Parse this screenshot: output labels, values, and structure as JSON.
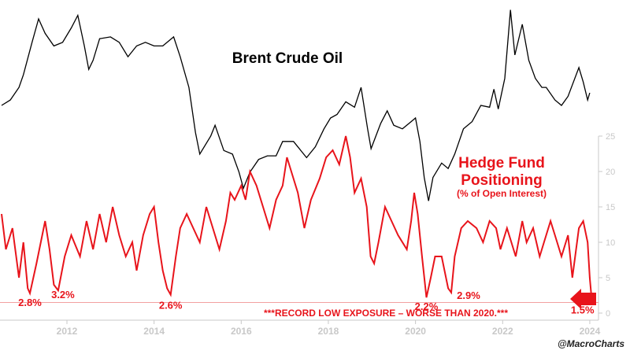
{
  "chart_data": {
    "type": "line",
    "brent_label": "Brent Crude Oil",
    "hf_label_line1": "Hedge Fund",
    "hf_label_line2": "Positioning",
    "hf_label_line3": "(% of Open Interest)",
    "x_ticks": [
      "2012",
      "2014",
      "2016",
      "2018",
      "2020",
      "2022",
      "2024"
    ],
    "xlim": [
      2010.5,
      2024.2
    ],
    "y_ticks": [
      "0",
      "5",
      "10",
      "15",
      "20",
      "25"
    ],
    "ylim": [
      0,
      25
    ],
    "grid": false,
    "colors": {
      "brent": "#000000",
      "hedge": "#e8141b",
      "axis": "#c8c8c8",
      "tick": "#c8c8c8",
      "record_line": "#f2a0a0"
    },
    "series": [
      {
        "name": "Brent Crude Oil",
        "color": "#000000",
        "points": [
          [
            2010.5,
            75
          ],
          [
            2010.7,
            78
          ],
          [
            2010.9,
            85
          ],
          [
            2011.0,
            92
          ],
          [
            2011.2,
            110
          ],
          [
            2011.35,
            123
          ],
          [
            2011.5,
            115
          ],
          [
            2011.7,
            108
          ],
          [
            2011.9,
            110
          ],
          [
            2012.1,
            118
          ],
          [
            2012.25,
            125
          ],
          [
            2012.4,
            108
          ],
          [
            2012.5,
            95
          ],
          [
            2012.6,
            100
          ],
          [
            2012.75,
            112
          ],
          [
            2013.0,
            113
          ],
          [
            2013.2,
            110
          ],
          [
            2013.4,
            102
          ],
          [
            2013.6,
            108
          ],
          [
            2013.8,
            110
          ],
          [
            2014.0,
            108
          ],
          [
            2014.2,
            108
          ],
          [
            2014.45,
            113
          ],
          [
            2014.6,
            102
          ],
          [
            2014.8,
            85
          ],
          [
            2014.95,
            60
          ],
          [
            2015.05,
            48
          ],
          [
            2015.3,
            58
          ],
          [
            2015.4,
            64
          ],
          [
            2015.6,
            50
          ],
          [
            2015.8,
            48
          ],
          [
            2015.95,
            38
          ],
          [
            2016.05,
            29
          ],
          [
            2016.2,
            38
          ],
          [
            2016.4,
            45
          ],
          [
            2016.6,
            47
          ],
          [
            2016.8,
            47
          ],
          [
            2016.95,
            55
          ],
          [
            2017.2,
            55
          ],
          [
            2017.5,
            46
          ],
          [
            2017.7,
            52
          ],
          [
            2017.9,
            62
          ],
          [
            2018.05,
            68
          ],
          [
            2018.2,
            70
          ],
          [
            2018.4,
            77
          ],
          [
            2018.6,
            74
          ],
          [
            2018.75,
            85
          ],
          [
            2018.9,
            62
          ],
          [
            2018.98,
            51
          ],
          [
            2019.2,
            65
          ],
          [
            2019.35,
            72
          ],
          [
            2019.5,
            64
          ],
          [
            2019.7,
            62
          ],
          [
            2019.9,
            66
          ],
          [
            2020.0,
            68
          ],
          [
            2020.1,
            55
          ],
          [
            2020.2,
            35
          ],
          [
            2020.3,
            22
          ],
          [
            2020.4,
            35
          ],
          [
            2020.6,
            43
          ],
          [
            2020.75,
            40
          ],
          [
            2020.9,
            48
          ],
          [
            2021.1,
            62
          ],
          [
            2021.3,
            66
          ],
          [
            2021.5,
            75
          ],
          [
            2021.7,
            74
          ],
          [
            2021.8,
            84
          ],
          [
            2021.9,
            73
          ],
          [
            2022.05,
            90
          ],
          [
            2022.18,
            128
          ],
          [
            2022.28,
            103
          ],
          [
            2022.45,
            120
          ],
          [
            2022.6,
            100
          ],
          [
            2022.75,
            90
          ],
          [
            2022.9,
            85
          ],
          [
            2023.0,
            85
          ],
          [
            2023.2,
            78
          ],
          [
            2023.35,
            75
          ],
          [
            2023.5,
            80
          ],
          [
            2023.75,
            96
          ],
          [
            2023.85,
            88
          ],
          [
            2023.95,
            78
          ],
          [
            2024.0,
            82
          ]
        ]
      },
      {
        "name": "Hedge Fund Positioning (% of Open Interest)",
        "color": "#e8141b",
        "points": [
          [
            2010.5,
            14
          ],
          [
            2010.6,
            9
          ],
          [
            2010.75,
            12
          ],
          [
            2010.9,
            5
          ],
          [
            2011.0,
            10
          ],
          [
            2011.1,
            3.5
          ],
          [
            2011.15,
            2.8
          ],
          [
            2011.3,
            7
          ],
          [
            2011.5,
            13
          ],
          [
            2011.6,
            9
          ],
          [
            2011.7,
            4
          ],
          [
            2011.8,
            3.2
          ],
          [
            2011.95,
            8
          ],
          [
            2012.1,
            11
          ],
          [
            2012.3,
            8
          ],
          [
            2012.45,
            13
          ],
          [
            2012.6,
            9
          ],
          [
            2012.75,
            14
          ],
          [
            2012.9,
            10
          ],
          [
            2013.05,
            15
          ],
          [
            2013.2,
            11
          ],
          [
            2013.35,
            8
          ],
          [
            2013.5,
            10
          ],
          [
            2013.6,
            6
          ],
          [
            2013.75,
            11
          ],
          [
            2013.9,
            14
          ],
          [
            2014.0,
            15
          ],
          [
            2014.1,
            10
          ],
          [
            2014.2,
            6
          ],
          [
            2014.3,
            3.5
          ],
          [
            2014.38,
            2.6
          ],
          [
            2014.5,
            8
          ],
          [
            2014.6,
            12
          ],
          [
            2014.75,
            14
          ],
          [
            2014.9,
            12
          ],
          [
            2015.05,
            10
          ],
          [
            2015.2,
            15
          ],
          [
            2015.35,
            12
          ],
          [
            2015.5,
            9
          ],
          [
            2015.65,
            13
          ],
          [
            2015.75,
            17
          ],
          [
            2015.85,
            16
          ],
          [
            2016.0,
            18
          ],
          [
            2016.1,
            16
          ],
          [
            2016.2,
            20
          ],
          [
            2016.35,
            18
          ],
          [
            2016.5,
            15
          ],
          [
            2016.65,
            12
          ],
          [
            2016.8,
            16
          ],
          [
            2016.95,
            18
          ],
          [
            2017.05,
            22
          ],
          [
            2017.15,
            20
          ],
          [
            2017.3,
            17
          ],
          [
            2017.45,
            12
          ],
          [
            2017.6,
            16
          ],
          [
            2017.8,
            19
          ],
          [
            2017.95,
            22
          ],
          [
            2018.1,
            23
          ],
          [
            2018.25,
            21
          ],
          [
            2018.4,
            25
          ],
          [
            2018.5,
            22
          ],
          [
            2018.6,
            17
          ],
          [
            2018.75,
            19
          ],
          [
            2018.88,
            15
          ],
          [
            2018.97,
            8
          ],
          [
            2019.05,
            7
          ],
          [
            2019.15,
            10
          ],
          [
            2019.3,
            15
          ],
          [
            2019.45,
            13
          ],
          [
            2019.6,
            11
          ],
          [
            2019.8,
            9
          ],
          [
            2019.9,
            13
          ],
          [
            2019.97,
            17
          ],
          [
            2020.05,
            14
          ],
          [
            2020.15,
            8
          ],
          [
            2020.25,
            2.2
          ],
          [
            2020.35,
            5
          ],
          [
            2020.45,
            8
          ],
          [
            2020.6,
            8
          ],
          [
            2020.75,
            3.5
          ],
          [
            2020.82,
            2.9
          ],
          [
            2020.9,
            8
          ],
          [
            2021.05,
            12
          ],
          [
            2021.2,
            13
          ],
          [
            2021.4,
            12
          ],
          [
            2021.55,
            10
          ],
          [
            2021.7,
            13
          ],
          [
            2021.85,
            12
          ],
          [
            2021.95,
            9
          ],
          [
            2022.1,
            12
          ],
          [
            2022.3,
            8
          ],
          [
            2022.45,
            13
          ],
          [
            2022.55,
            10
          ],
          [
            2022.7,
            12
          ],
          [
            2022.85,
            8
          ],
          [
            2022.95,
            10
          ],
          [
            2023.1,
            13
          ],
          [
            2023.2,
            11
          ],
          [
            2023.35,
            8
          ],
          [
            2023.5,
            11
          ],
          [
            2023.6,
            5
          ],
          [
            2023.75,
            12
          ],
          [
            2023.85,
            13
          ],
          [
            2023.95,
            10
          ],
          [
            2024.0,
            5
          ],
          [
            2024.05,
            1.5
          ]
        ]
      }
    ],
    "annotations": [
      {
        "text": "2.8%",
        "x": 2011.15,
        "y": 2.8
      },
      {
        "text": "3.2%",
        "x": 2011.8,
        "y": 3.2
      },
      {
        "text": "2.6%",
        "x": 2014.38,
        "y": 2.6
      },
      {
        "text": "2.2%",
        "x": 2020.25,
        "y": 2.2
      },
      {
        "text": "2.9%",
        "x": 2020.82,
        "y": 2.9
      },
      {
        "text": "1.5%",
        "x": 2024.05,
        "y": 1.5
      }
    ],
    "record_note": "***RECORD LOW EXPOSURE – WORSE THAN 2020.***",
    "record_level": 1.5,
    "credit": "@MacroCharts"
  }
}
